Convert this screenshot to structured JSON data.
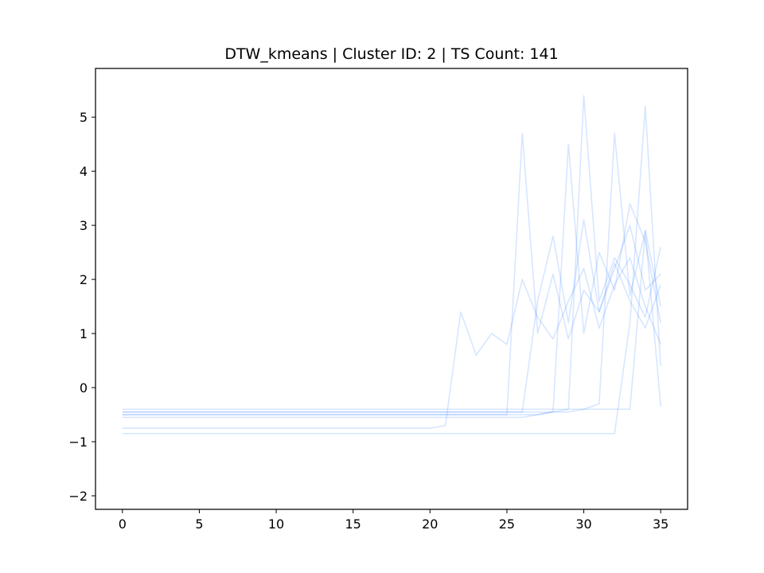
{
  "chart_data": {
    "type": "line",
    "title": "DTW_kmeans | Cluster ID: 2 | TS Count: 141",
    "xlabel": "",
    "ylabel": "",
    "xlim": [
      -1.75,
      36.75
    ],
    "ylim": [
      -2.25,
      5.9
    ],
    "x_ticks": [
      0,
      5,
      10,
      15,
      20,
      25,
      30,
      35
    ],
    "y_ticks": [
      -2,
      -1,
      0,
      1,
      2,
      3,
      4,
      5
    ],
    "x_tick_labels": [
      "0",
      "5",
      "10",
      "15",
      "20",
      "25",
      "30",
      "35"
    ],
    "y_tick_labels": [
      "−2",
      "−1",
      "0",
      "1",
      "2",
      "3",
      "4",
      "5"
    ],
    "grid": false,
    "legend": "none",
    "series_color": "#1f77ff",
    "series_opacity": 0.05,
    "series_count": 141,
    "x": [
      0,
      1,
      2,
      3,
      4,
      5,
      6,
      7,
      8,
      9,
      10,
      11,
      12,
      13,
      14,
      15,
      16,
      17,
      18,
      19,
      20,
      21,
      22,
      23,
      24,
      25,
      26,
      27,
      28,
      29,
      30,
      31,
      32,
      33,
      34,
      35
    ],
    "series": [
      {
        "values": [
          -0.45,
          -0.45,
          -0.45,
          -0.45,
          -0.45,
          -0.45,
          -0.45,
          -0.45,
          -0.45,
          -0.45,
          -0.45,
          -0.45,
          -0.45,
          -0.45,
          -0.45,
          -0.45,
          -0.45,
          -0.45,
          -0.45,
          -0.45,
          -0.45,
          -0.45,
          -0.45,
          -0.45,
          -0.45,
          -0.45,
          -0.45,
          1.6,
          2.8,
          1.2,
          3.1,
          1.4,
          2.2,
          3.0,
          1.8,
          2.1
        ]
      },
      {
        "values": [
          -0.5,
          -0.5,
          -0.5,
          -0.5,
          -0.5,
          -0.5,
          -0.5,
          -0.5,
          -0.5,
          -0.5,
          -0.5,
          -0.5,
          -0.5,
          -0.5,
          -0.5,
          -0.5,
          -0.5,
          -0.5,
          -0.5,
          -0.5,
          -0.5,
          -0.5,
          -0.5,
          -0.5,
          -0.5,
          -0.5,
          -0.5,
          -0.5,
          -0.45,
          4.5,
          1.0,
          2.5,
          1.8,
          3.4,
          2.7,
          1.2
        ]
      },
      {
        "values": [
          -0.55,
          -0.55,
          -0.55,
          -0.55,
          -0.55,
          -0.55,
          -0.55,
          -0.55,
          -0.55,
          -0.55,
          -0.55,
          -0.55,
          -0.55,
          -0.55,
          -0.55,
          -0.55,
          -0.55,
          -0.55,
          -0.55,
          -0.55,
          -0.55,
          -0.55,
          -0.55,
          -0.55,
          -0.55,
          -0.55,
          -0.55,
          -0.5,
          -0.45,
          -0.4,
          5.4,
          1.6,
          2.4,
          1.9,
          1.3,
          2.6
        ]
      },
      {
        "values": [
          -0.45,
          -0.45,
          -0.45,
          -0.45,
          -0.45,
          -0.45,
          -0.45,
          -0.45,
          -0.45,
          -0.45,
          -0.45,
          -0.45,
          -0.45,
          -0.45,
          -0.45,
          -0.45,
          -0.45,
          -0.45,
          -0.45,
          -0.45,
          -0.45,
          -0.45,
          -0.45,
          -0.45,
          -0.45,
          -0.45,
          -0.45,
          -0.45,
          -0.45,
          -0.45,
          -0.4,
          -0.3,
          4.7,
          1.7,
          2.9,
          1.5
        ]
      },
      {
        "values": [
          -0.75,
          -0.75,
          -0.75,
          -0.75,
          -0.75,
          -0.75,
          -0.75,
          -0.75,
          -0.75,
          -0.75,
          -0.75,
          -0.75,
          -0.75,
          -0.75,
          -0.75,
          -0.75,
          -0.75,
          -0.75,
          -0.75,
          -0.75,
          -0.75,
          -0.7,
          1.4,
          0.6,
          1.0,
          0.8,
          2.0,
          1.3,
          0.9,
          1.6,
          2.2,
          1.1,
          1.9,
          2.4,
          1.5,
          0.8
        ]
      },
      {
        "values": [
          -0.5,
          -0.5,
          -0.5,
          -0.5,
          -0.5,
          -0.5,
          -0.5,
          -0.5,
          -0.5,
          -0.5,
          -0.5,
          -0.5,
          -0.5,
          -0.5,
          -0.5,
          -0.5,
          -0.5,
          -0.5,
          -0.5,
          -0.5,
          -0.5,
          -0.5,
          -0.5,
          -0.5,
          -0.5,
          -0.5,
          4.7,
          1.0,
          2.1,
          0.9,
          1.8,
          1.4,
          2.3,
          1.6,
          1.1,
          1.9
        ]
      },
      {
        "values": [
          -0.85,
          -0.85,
          -0.85,
          -0.85,
          -0.85,
          -0.85,
          -0.85,
          -0.85,
          -0.85,
          -0.85,
          -0.85,
          -0.85,
          -0.85,
          -0.85,
          -0.85,
          -0.85,
          -0.85,
          -0.85,
          -0.85,
          -0.85,
          -0.85,
          -0.85,
          -0.85,
          -0.85,
          -0.85,
          -0.85,
          -0.85,
          -0.85,
          -0.85,
          -0.85,
          -0.85,
          -0.85,
          -0.85,
          1.2,
          5.2,
          0.4
        ]
      },
      {
        "values": [
          -0.4,
          -0.4,
          -0.4,
          -0.4,
          -0.4,
          -0.4,
          -0.4,
          -0.4,
          -0.4,
          -0.4,
          -0.4,
          -0.4,
          -0.4,
          -0.4,
          -0.4,
          -0.4,
          -0.4,
          -0.4,
          -0.4,
          -0.4,
          -0.4,
          -0.4,
          -0.4,
          -0.4,
          -0.4,
          -0.4,
          -0.4,
          -0.4,
          -0.4,
          -0.4,
          -0.4,
          -0.4,
          -0.4,
          -0.4,
          2.9,
          -0.35
        ]
      }
    ]
  }
}
